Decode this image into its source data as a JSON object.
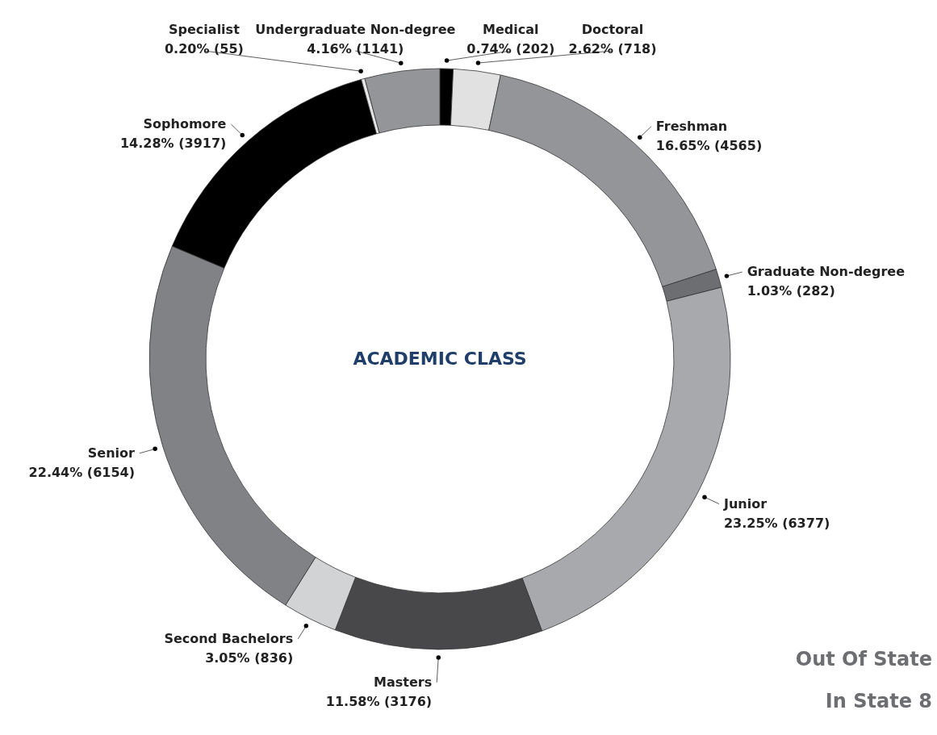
{
  "chart_data": {
    "type": "donut",
    "title": "ACADEMIC CLASS",
    "categories": [
      "Medical",
      "Doctoral",
      "Freshman",
      "Graduate Non-degree",
      "Junior",
      "Masters",
      "Second Bachelors",
      "Senior",
      "Sophomore",
      "Specialist",
      "Undergraduate Non-degree"
    ],
    "values": [
      202,
      718,
      4565,
      282,
      6377,
      3176,
      836,
      6154,
      3917,
      55,
      1141
    ],
    "value_labels": [
      "0.74% (202)",
      "2.62% (718)",
      "16.65% (4565)",
      "1.03% (282)",
      "23.25% (6377)",
      "11.58% (3176)",
      "3.05% (836)",
      "22.44% (6154)",
      "14.28% (3917)",
      "0.20% (55)",
      "4.16% (1141)"
    ],
    "colors": [
      "#000000",
      "#e1e1e2",
      "#939598",
      "#6d6e71",
      "#a7a9ac",
      "#48484b",
      "#d1d3d4",
      "#808285",
      "#000000",
      "#e6e6e6",
      "#939598"
    ],
    "annotations": [
      "Out Of State",
      "In State 8"
    ]
  }
}
